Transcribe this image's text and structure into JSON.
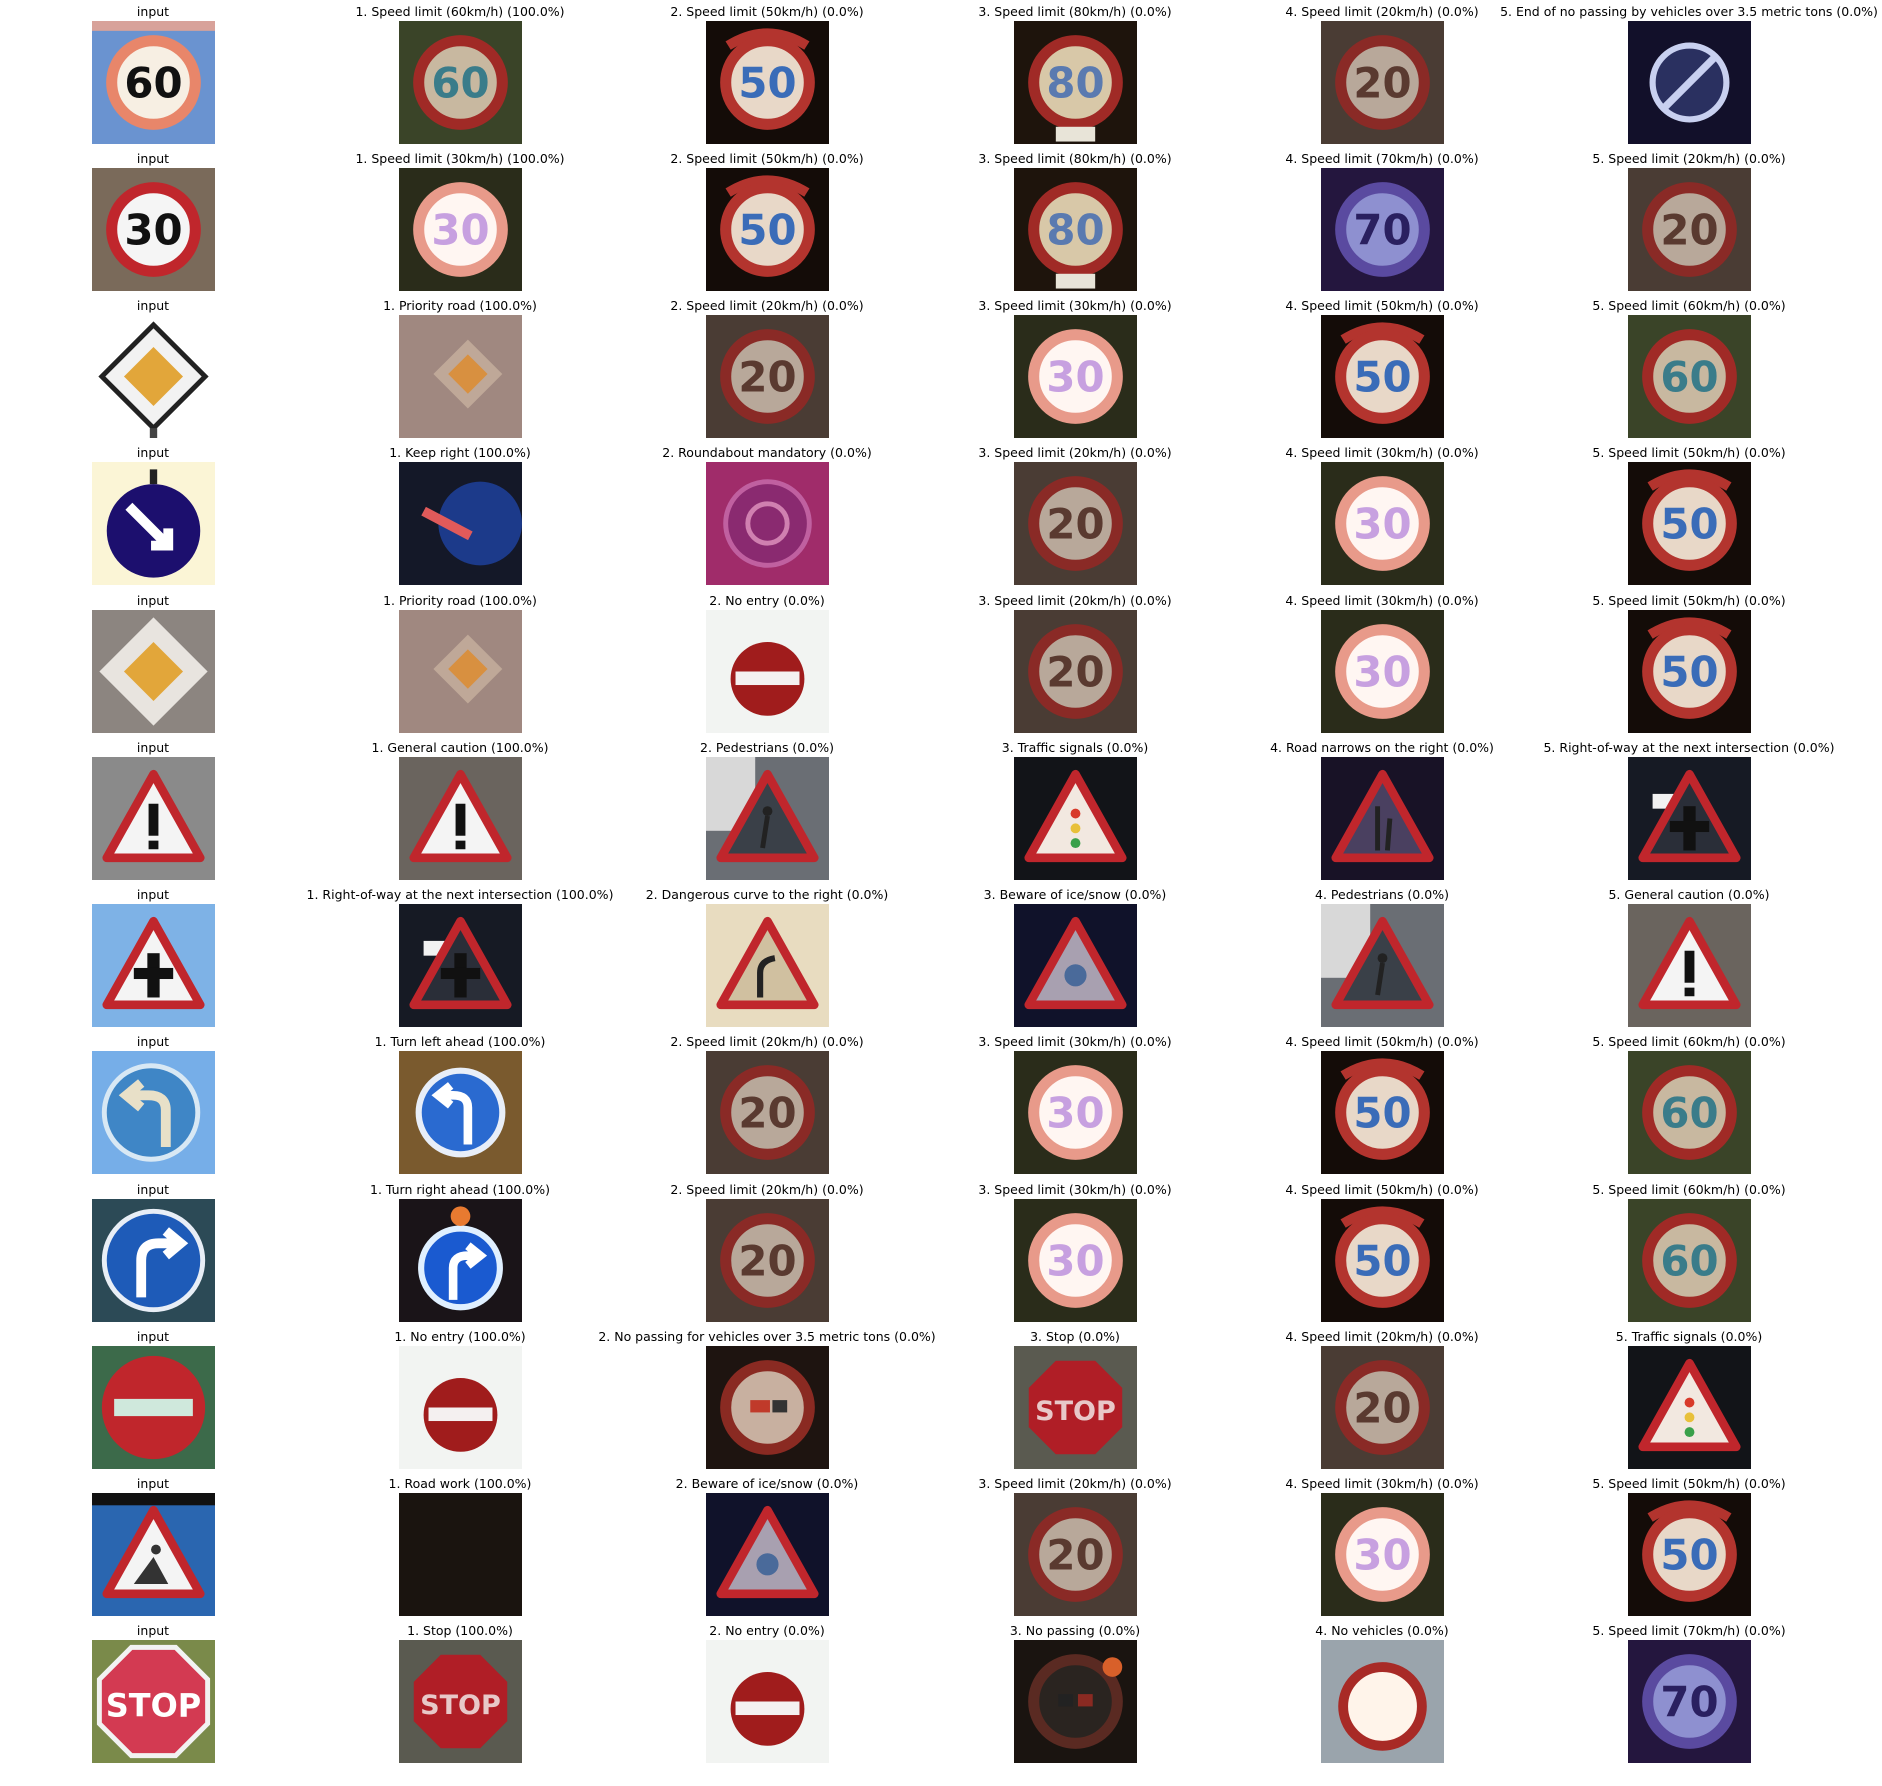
{
  "rows": [
    {
      "cells": [
        {
          "caption": "input",
          "sign": "speed60-input"
        },
        {
          "caption": "1. Speed limit (60km/h) (100.0%)",
          "sign": "speed-limit-60"
        },
        {
          "caption": "2. Speed limit (50km/h) (0.0%)",
          "sign": "speed-limit-50"
        },
        {
          "caption": "3. Speed limit (80km/h) (0.0%)",
          "sign": "speed-limit-80"
        },
        {
          "caption": "4. Speed limit (20km/h) (0.0%)",
          "sign": "speed-limit-20"
        },
        {
          "caption": "5. End of no passing by vehicles over 3.5 metric tons (0.0%)",
          "sign": "end-no-passing-trucks"
        }
      ]
    },
    {
      "cells": [
        {
          "caption": "input",
          "sign": "speed30-input"
        },
        {
          "caption": "1. Speed limit (30km/h) (100.0%)",
          "sign": "speed-limit-30"
        },
        {
          "caption": "2. Speed limit (50km/h) (0.0%)",
          "sign": "speed-limit-50"
        },
        {
          "caption": "3. Speed limit (80km/h) (0.0%)",
          "sign": "speed-limit-80"
        },
        {
          "caption": "4. Speed limit (70km/h) (0.0%)",
          "sign": "speed-limit-70"
        },
        {
          "caption": "5. Speed limit (20km/h) (0.0%)",
          "sign": "speed-limit-20"
        }
      ]
    },
    {
      "cells": [
        {
          "caption": "input",
          "sign": "priority-input"
        },
        {
          "caption": "1. Priority road (100.0%)",
          "sign": "priority-road"
        },
        {
          "caption": "2. Speed limit (20km/h) (0.0%)",
          "sign": "speed-limit-20"
        },
        {
          "caption": "3. Speed limit (30km/h) (0.0%)",
          "sign": "speed-limit-30"
        },
        {
          "caption": "4. Speed limit (50km/h) (0.0%)",
          "sign": "speed-limit-50"
        },
        {
          "caption": "5. Speed limit (60km/h) (0.0%)",
          "sign": "speed-limit-60"
        }
      ]
    },
    {
      "cells": [
        {
          "caption": "input",
          "sign": "keepright-input"
        },
        {
          "caption": "1. Keep right (100.0%)",
          "sign": "keep-right"
        },
        {
          "caption": "2. Roundabout mandatory (0.0%)",
          "sign": "roundabout"
        },
        {
          "caption": "3. Speed limit (20km/h) (0.0%)",
          "sign": "speed-limit-20"
        },
        {
          "caption": "4. Speed limit (30km/h) (0.0%)",
          "sign": "speed-limit-30"
        },
        {
          "caption": "5. Speed limit (50km/h) (0.0%)",
          "sign": "speed-limit-50"
        }
      ]
    },
    {
      "cells": [
        {
          "caption": "input",
          "sign": "priority-input-2"
        },
        {
          "caption": "1. Priority road (100.0%)",
          "sign": "priority-road"
        },
        {
          "caption": "2. No entry (0.0%)",
          "sign": "no-entry"
        },
        {
          "caption": "3. Speed limit (20km/h) (0.0%)",
          "sign": "speed-limit-20"
        },
        {
          "caption": "4. Speed limit (30km/h) (0.0%)",
          "sign": "speed-limit-30"
        },
        {
          "caption": "5. Speed limit (50km/h) (0.0%)",
          "sign": "speed-limit-50"
        }
      ]
    },
    {
      "cells": [
        {
          "caption": "input",
          "sign": "caution-input"
        },
        {
          "caption": "1. General caution (100.0%)",
          "sign": "general-caution"
        },
        {
          "caption": "2. Pedestrians (0.0%)",
          "sign": "pedestrians"
        },
        {
          "caption": "3. Traffic signals (0.0%)",
          "sign": "traffic-signals"
        },
        {
          "caption": "4. Road narrows on the right (0.0%)",
          "sign": "road-narrows"
        },
        {
          "caption": "5. Right-of-way at the next intersection (0.0%)",
          "sign": "right-of-way"
        }
      ]
    },
    {
      "cells": [
        {
          "caption": "input",
          "sign": "rightofway-input"
        },
        {
          "caption": "1. Right-of-way at the next intersection (100.0%)",
          "sign": "right-of-way"
        },
        {
          "caption": "2. Dangerous curve to the right (0.0%)",
          "sign": "dangerous-curve"
        },
        {
          "caption": "3. Beware of ice/snow (0.0%)",
          "sign": "ice-snow"
        },
        {
          "caption": "4. Pedestrians (0.0%)",
          "sign": "pedestrians"
        },
        {
          "caption": "5. General caution (0.0%)",
          "sign": "general-caution"
        }
      ]
    },
    {
      "cells": [
        {
          "caption": "input",
          "sign": "turnleft-input"
        },
        {
          "caption": "1. Turn left ahead (100.0%)",
          "sign": "turn-left"
        },
        {
          "caption": "2. Speed limit (20km/h) (0.0%)",
          "sign": "speed-limit-20"
        },
        {
          "caption": "3. Speed limit (30km/h) (0.0%)",
          "sign": "speed-limit-30"
        },
        {
          "caption": "4. Speed limit (50km/h) (0.0%)",
          "sign": "speed-limit-50"
        },
        {
          "caption": "5. Speed limit (60km/h) (0.0%)",
          "sign": "speed-limit-60"
        }
      ]
    },
    {
      "cells": [
        {
          "caption": "input",
          "sign": "turnright-input"
        },
        {
          "caption": "1. Turn right ahead (100.0%)",
          "sign": "turn-right"
        },
        {
          "caption": "2. Speed limit (20km/h) (0.0%)",
          "sign": "speed-limit-20"
        },
        {
          "caption": "3. Speed limit (30km/h) (0.0%)",
          "sign": "speed-limit-30"
        },
        {
          "caption": "4. Speed limit (50km/h) (0.0%)",
          "sign": "speed-limit-50"
        },
        {
          "caption": "5. Speed limit (60km/h) (0.0%)",
          "sign": "speed-limit-60"
        }
      ]
    },
    {
      "cells": [
        {
          "caption": "input",
          "sign": "noentry-input"
        },
        {
          "caption": "1. No entry (100.0%)",
          "sign": "no-entry"
        },
        {
          "caption": "2. No passing for vehicles over 3.5 metric tons (0.0%)",
          "sign": "no-passing-trucks"
        },
        {
          "caption": "3. Stop (0.0%)",
          "sign": "stop"
        },
        {
          "caption": "4. Speed limit (20km/h) (0.0%)",
          "sign": "speed-limit-20"
        },
        {
          "caption": "5. Traffic signals (0.0%)",
          "sign": "traffic-signals"
        }
      ]
    },
    {
      "cells": [
        {
          "caption": "input",
          "sign": "roadwork-input"
        },
        {
          "caption": "1. Road work (100.0%)",
          "sign": "road-work"
        },
        {
          "caption": "2. Beware of ice/snow (0.0%)",
          "sign": "ice-snow"
        },
        {
          "caption": "3. Speed limit (20km/h) (0.0%)",
          "sign": "speed-limit-20"
        },
        {
          "caption": "4. Speed limit (30km/h) (0.0%)",
          "sign": "speed-limit-30"
        },
        {
          "caption": "5. Speed limit (50km/h) (0.0%)",
          "sign": "speed-limit-50"
        }
      ]
    },
    {
      "cells": [
        {
          "caption": "input",
          "sign": "stop-input"
        },
        {
          "caption": "1. Stop (100.0%)",
          "sign": "stop"
        },
        {
          "caption": "2. No entry (0.0%)",
          "sign": "no-entry"
        },
        {
          "caption": "3. No passing (0.0%)",
          "sign": "no-passing"
        },
        {
          "caption": "4. No vehicles (0.0%)",
          "sign": "no-vehicles"
        },
        {
          "caption": "5. Speed limit (70km/h) (0.0%)",
          "sign": "speed-limit-70"
        }
      ]
    }
  ],
  "sign_text": {
    "speed60-input": "60",
    "speed30-input": "30",
    "stop-input": "STOP",
    "stop": "STOP",
    "speed-limit-20": "20",
    "speed-limit-30": "30",
    "speed-limit-50": "50",
    "speed-limit-60": "60",
    "speed-limit-70": "70",
    "speed-limit-80": "80"
  },
  "colors": {
    "sign_red": "#c0262c",
    "sign_blue": "#1e5bb8",
    "sign_navy": "#1c0f6e",
    "sign_yellow": "#e2a63a",
    "dark_background": "#1a140f"
  }
}
